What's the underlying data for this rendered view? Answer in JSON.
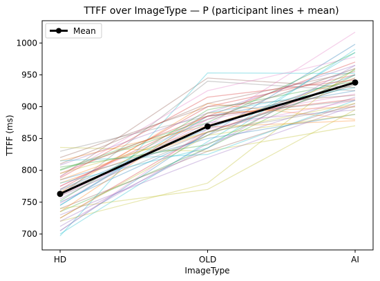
{
  "chart_data": {
    "type": "line",
    "title": "TTFF over ImageType — P (participant lines + mean)",
    "xlabel": "ImageType",
    "ylabel": "TTFF (ms)",
    "categories": [
      "HD",
      "OLD",
      "AI"
    ],
    "ylim": [
      675,
      1035
    ],
    "yticks": [
      700,
      750,
      800,
      850,
      900,
      950,
      1000
    ],
    "grid": false,
    "legend_position": "top-left",
    "mean_series": {
      "name": "Mean",
      "color": "#000000",
      "values": [
        763,
        869,
        938
      ]
    },
    "participant_series": [
      {
        "color": "#1f77b4",
        "values": [
          745,
          885,
          925
        ]
      },
      {
        "color": "#ff7f0e",
        "values": [
          780,
          860,
          935
        ]
      },
      {
        "color": "#2ca02c",
        "values": [
          801,
          880,
          960
        ]
      },
      {
        "color": "#d62728",
        "values": [
          770,
          900,
          950
        ]
      },
      {
        "color": "#9467bd",
        "values": [
          712,
          842,
          915
        ]
      },
      {
        "color": "#8c564b",
        "values": [
          790,
          945,
          930
        ]
      },
      {
        "color": "#e377c2",
        "values": [
          760,
          870,
          1017
        ]
      },
      {
        "color": "#7f7f7f",
        "values": [
          830,
          885,
          910
        ]
      },
      {
        "color": "#bcbd22",
        "values": [
          836,
          830,
          870
        ]
      },
      {
        "color": "#17becf",
        "values": [
          697,
          953,
          952
        ]
      },
      {
        "color": "#1f77b4",
        "values": [
          750,
          855,
          998
        ]
      },
      {
        "color": "#ff7f0e",
        "values": [
          765,
          905,
          880
        ]
      },
      {
        "color": "#2ca02c",
        "values": [
          800,
          875,
          985
        ]
      },
      {
        "color": "#d62728",
        "values": [
          725,
          860,
          940
        ]
      },
      {
        "color": "#9467bd",
        "values": [
          808,
          890,
          965
        ]
      },
      {
        "color": "#8c564b",
        "values": [
          740,
          830,
          905
        ]
      },
      {
        "color": "#e377c2",
        "values": [
          775,
          880,
          920
        ]
      },
      {
        "color": "#7f7f7f",
        "values": [
          760,
          940,
          925
        ]
      },
      {
        "color": "#bcbd22",
        "values": [
          720,
          780,
          960
        ]
      },
      {
        "color": "#17becf",
        "values": [
          700,
          845,
          985
        ]
      },
      {
        "color": "#1f77b4",
        "values": [
          785,
          850,
          888
        ]
      },
      {
        "color": "#ff7f0e",
        "values": [
          815,
          870,
          945
        ]
      },
      {
        "color": "#2ca02c",
        "values": [
          735,
          835,
          950
        ]
      },
      {
        "color": "#d62728",
        "values": [
          795,
          885,
          912
        ]
      },
      {
        "color": "#9467bd",
        "values": [
          755,
          875,
          895
        ]
      },
      {
        "color": "#8c564b",
        "values": [
          810,
          905,
          955
        ]
      },
      {
        "color": "#e377c2",
        "values": [
          790,
          925,
          978
        ]
      },
      {
        "color": "#7f7f7f",
        "values": [
          768,
          860,
          900
        ]
      },
      {
        "color": "#bcbd22",
        "values": [
          740,
          770,
          895
        ]
      },
      {
        "color": "#17becf",
        "values": [
          815,
          825,
          910
        ]
      },
      {
        "color": "#1f77b4",
        "values": [
          705,
          860,
          935
        ]
      },
      {
        "color": "#ff7f0e",
        "values": [
          785,
          868,
          878
        ]
      },
      {
        "color": "#2ca02c",
        "values": [
          752,
          895,
          940
        ]
      },
      {
        "color": "#d62728",
        "values": [
          775,
          885,
          970
        ]
      },
      {
        "color": "#9467bd",
        "values": [
          730,
          820,
          902
        ]
      },
      {
        "color": "#8c564b",
        "values": [
          820,
          900,
          918
        ]
      },
      {
        "color": "#e377c2",
        "values": [
          748,
          880,
          960
        ]
      },
      {
        "color": "#7f7f7f",
        "values": [
          760,
          855,
          945
        ]
      },
      {
        "color": "#bcbd22",
        "values": [
          795,
          860,
          905
        ]
      },
      {
        "color": "#17becf",
        "values": [
          745,
          890,
          930
        ]
      },
      {
        "color": "#1f77b4",
        "values": [
          770,
          865,
          950
        ]
      },
      {
        "color": "#ff7f0e",
        "values": [
          735,
          890,
          900
        ]
      },
      {
        "color": "#2ca02c",
        "values": [
          805,
          840,
          958
        ]
      },
      {
        "color": "#d62728",
        "values": [
          788,
          915,
          942
        ]
      },
      {
        "color": "#9467bd",
        "values": [
          720,
          835,
          965
        ]
      },
      {
        "color": "#e377c2",
        "values": [
          705,
          865,
          910
        ]
      },
      {
        "color": "#bcbd22",
        "values": [
          725,
          855,
          888
        ]
      },
      {
        "color": "#17becf",
        "values": [
          780,
          835,
          990
        ]
      }
    ]
  }
}
